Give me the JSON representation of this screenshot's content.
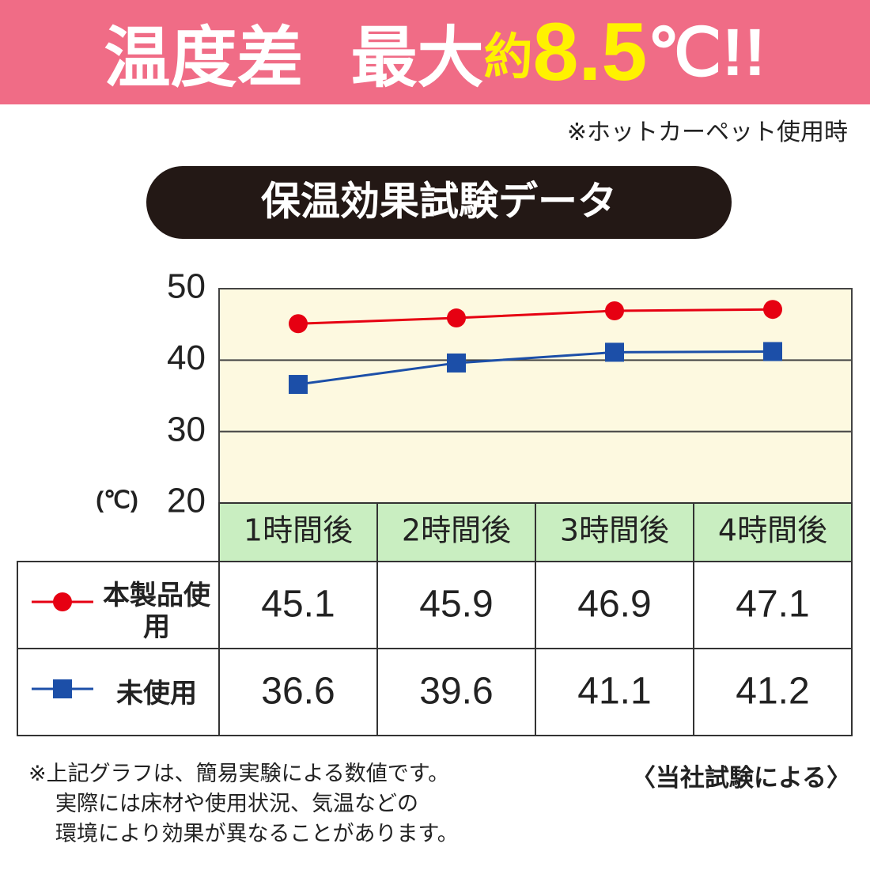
{
  "header": {
    "title_parts": [
      "温度差",
      "最大",
      "約",
      "8.5",
      "℃!!"
    ],
    "note": "※ホットカーペット使用時"
  },
  "chart_data": {
    "type": "line",
    "title": "保温効果試験データ",
    "y_label": "(℃)",
    "categories": [
      "1時間後",
      "2時間後",
      "3時間後",
      "4時間後"
    ],
    "series": [
      {
        "name": "本製品使用",
        "color": "#e60012",
        "marker": "circle",
        "values": [
          45.1,
          45.9,
          46.9,
          47.1
        ]
      },
      {
        "name": "未使用",
        "color": "#1c4fa8",
        "marker": "square",
        "values": [
          36.6,
          39.6,
          41.1,
          41.2
        ]
      }
    ],
    "ylim": [
      20,
      50
    ],
    "yticks": [
      20,
      30,
      40,
      50
    ],
    "grid": true
  },
  "footnotes": [
    "※上記グラフは、簡易実験による数値です。",
    "実際には床材や使用状況、気温などの",
    "環境により効果が異なることがあります。"
  ],
  "source": "〈当社試験による〉"
}
